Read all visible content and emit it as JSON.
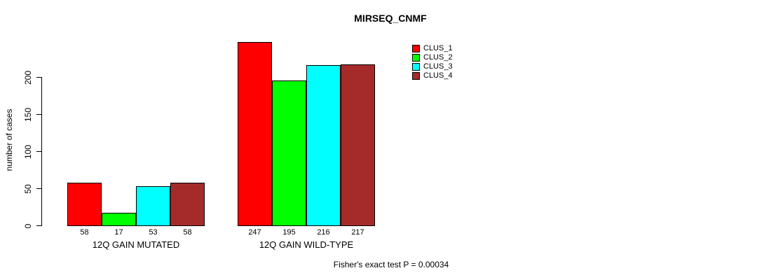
{
  "chart_data": {
    "type": "bar",
    "title": "MIRSEQ_CNMF",
    "ylabel": "number of cases",
    "yticks": [
      0,
      50,
      100,
      150,
      200
    ],
    "ylim": [
      0,
      260
    ],
    "grid": false,
    "legend_position": "top-right",
    "series": [
      {
        "name": "CLUS_1",
        "color": "#ff0000"
      },
      {
        "name": "CLUS_2",
        "color": "#00ff00"
      },
      {
        "name": "CLUS_3",
        "color": "#00ffff"
      },
      {
        "name": "CLUS_4",
        "color": "#a52a2a"
      }
    ],
    "groups": [
      {
        "label": "12Q GAIN MUTATED",
        "values": [
          58,
          17,
          53,
          58
        ]
      },
      {
        "label": "12Q GAIN WILD-TYPE",
        "values": [
          247,
          195,
          216,
          217
        ]
      }
    ],
    "footer": "Fisher's exact test P = 0.00034"
  }
}
